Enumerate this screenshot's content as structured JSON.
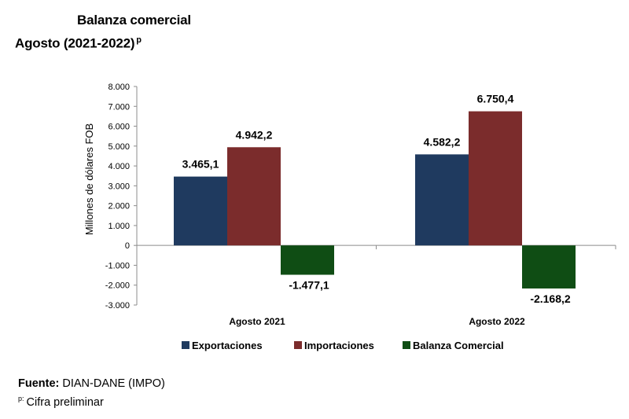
{
  "header": {
    "title": "Balanza comercial",
    "subtitle": "Agosto  (2021-2022)",
    "subtitle_mark": "p"
  },
  "chart_data": {
    "type": "bar",
    "ylabel": "Millones de dólares FOB",
    "xlabel": "",
    "ylim": [
      -3000,
      8000
    ],
    "yticks": [
      8000,
      7000,
      6000,
      5000,
      4000,
      3000,
      2000,
      1000,
      0,
      -1000,
      -2000,
      -3000
    ],
    "ytick_labels": [
      "8.000",
      "7.000",
      "6.000",
      "5.000",
      "4.000",
      "3.000",
      "2.000",
      "1.000",
      "0",
      "-1.000",
      "-2.000",
      "-3.000"
    ],
    "categories": [
      "Agosto 2021",
      "Agosto 2022"
    ],
    "series": [
      {
        "name": "Exportaciones",
        "color": "#1f3a5f",
        "values": [
          3465.1,
          4582.2
        ],
        "labels": [
          "3.465,1",
          "4.582,2"
        ]
      },
      {
        "name": "Importaciones",
        "color": "#7b2c2c",
        "values": [
          4942.2,
          6750.4
        ],
        "labels": [
          "4.942,2",
          "6.750,4"
        ]
      },
      {
        "name": "Balanza Comercial",
        "color": "#0f4d14",
        "values": [
          -1477.1,
          -2168.2
        ],
        "labels": [
          "-1.477,1",
          "-2.168,2"
        ]
      }
    ],
    "legend_position": "bottom"
  },
  "footer": {
    "source_label": "Fuente:",
    "source_text": " DIAN-DANE (IMPO)",
    "note_mark": "p:",
    "note_text": "Cifra preliminar"
  }
}
